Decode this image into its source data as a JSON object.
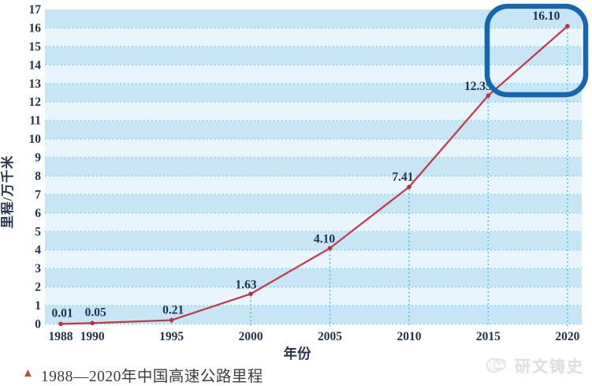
{
  "figure": {
    "caption": {
      "marker": "▲",
      "text": "1988—2020年中国高速公路里程"
    },
    "watermark": {
      "icon": "panda-logo-icon",
      "text": "研文铸史"
    }
  },
  "chart_data": {
    "type": "line",
    "title": "1988—2020年中国高速公路里程",
    "xlabel": "年份",
    "ylabel": "里程/万千米",
    "x": [
      1988,
      1990,
      1995,
      2000,
      2005,
      2010,
      2015,
      2020
    ],
    "xticklabels": [
      "1988",
      "1990",
      "1995",
      "2000",
      "2005",
      "2010",
      "2015",
      "2020"
    ],
    "values": [
      0.01,
      0.05,
      0.21,
      1.63,
      4.1,
      7.41,
      12.35,
      16.1
    ],
    "point_labels": [
      "0.01",
      "0.05",
      "0.21",
      "1.63",
      "4.10",
      "7.41",
      "12.35",
      "16.10"
    ],
    "series_name": "高速公路里程",
    "ylim": [
      0,
      17
    ],
    "ytick_step": 1,
    "xlim": [
      1988,
      2020
    ],
    "grid": "horizontal dotted lines each unit; vertical dotted drop lines under points from 1995 on; alternating blue stripes",
    "legend": "none",
    "annotations": [
      {
        "type": "highlight-box",
        "target": "2020 data point (16.10)",
        "shape": "rounded-rectangle"
      }
    ],
    "colors": {
      "line": "#c23b4d",
      "marker": "#bf2f43",
      "stripe_dark": "#c6e6f6",
      "stripe_light": "#e9f5fc",
      "grid_dot": "#8fd5f0",
      "drop_line": "#45c2ec",
      "tick_label": "#1e3050",
      "data_label": "#1e3050",
      "axis_title": "#27344e",
      "highlight_box": "#1565b0",
      "caption_marker": "#c14a2f",
      "caption_text": "#3d3d3d",
      "watermark": "#dadada"
    }
  }
}
